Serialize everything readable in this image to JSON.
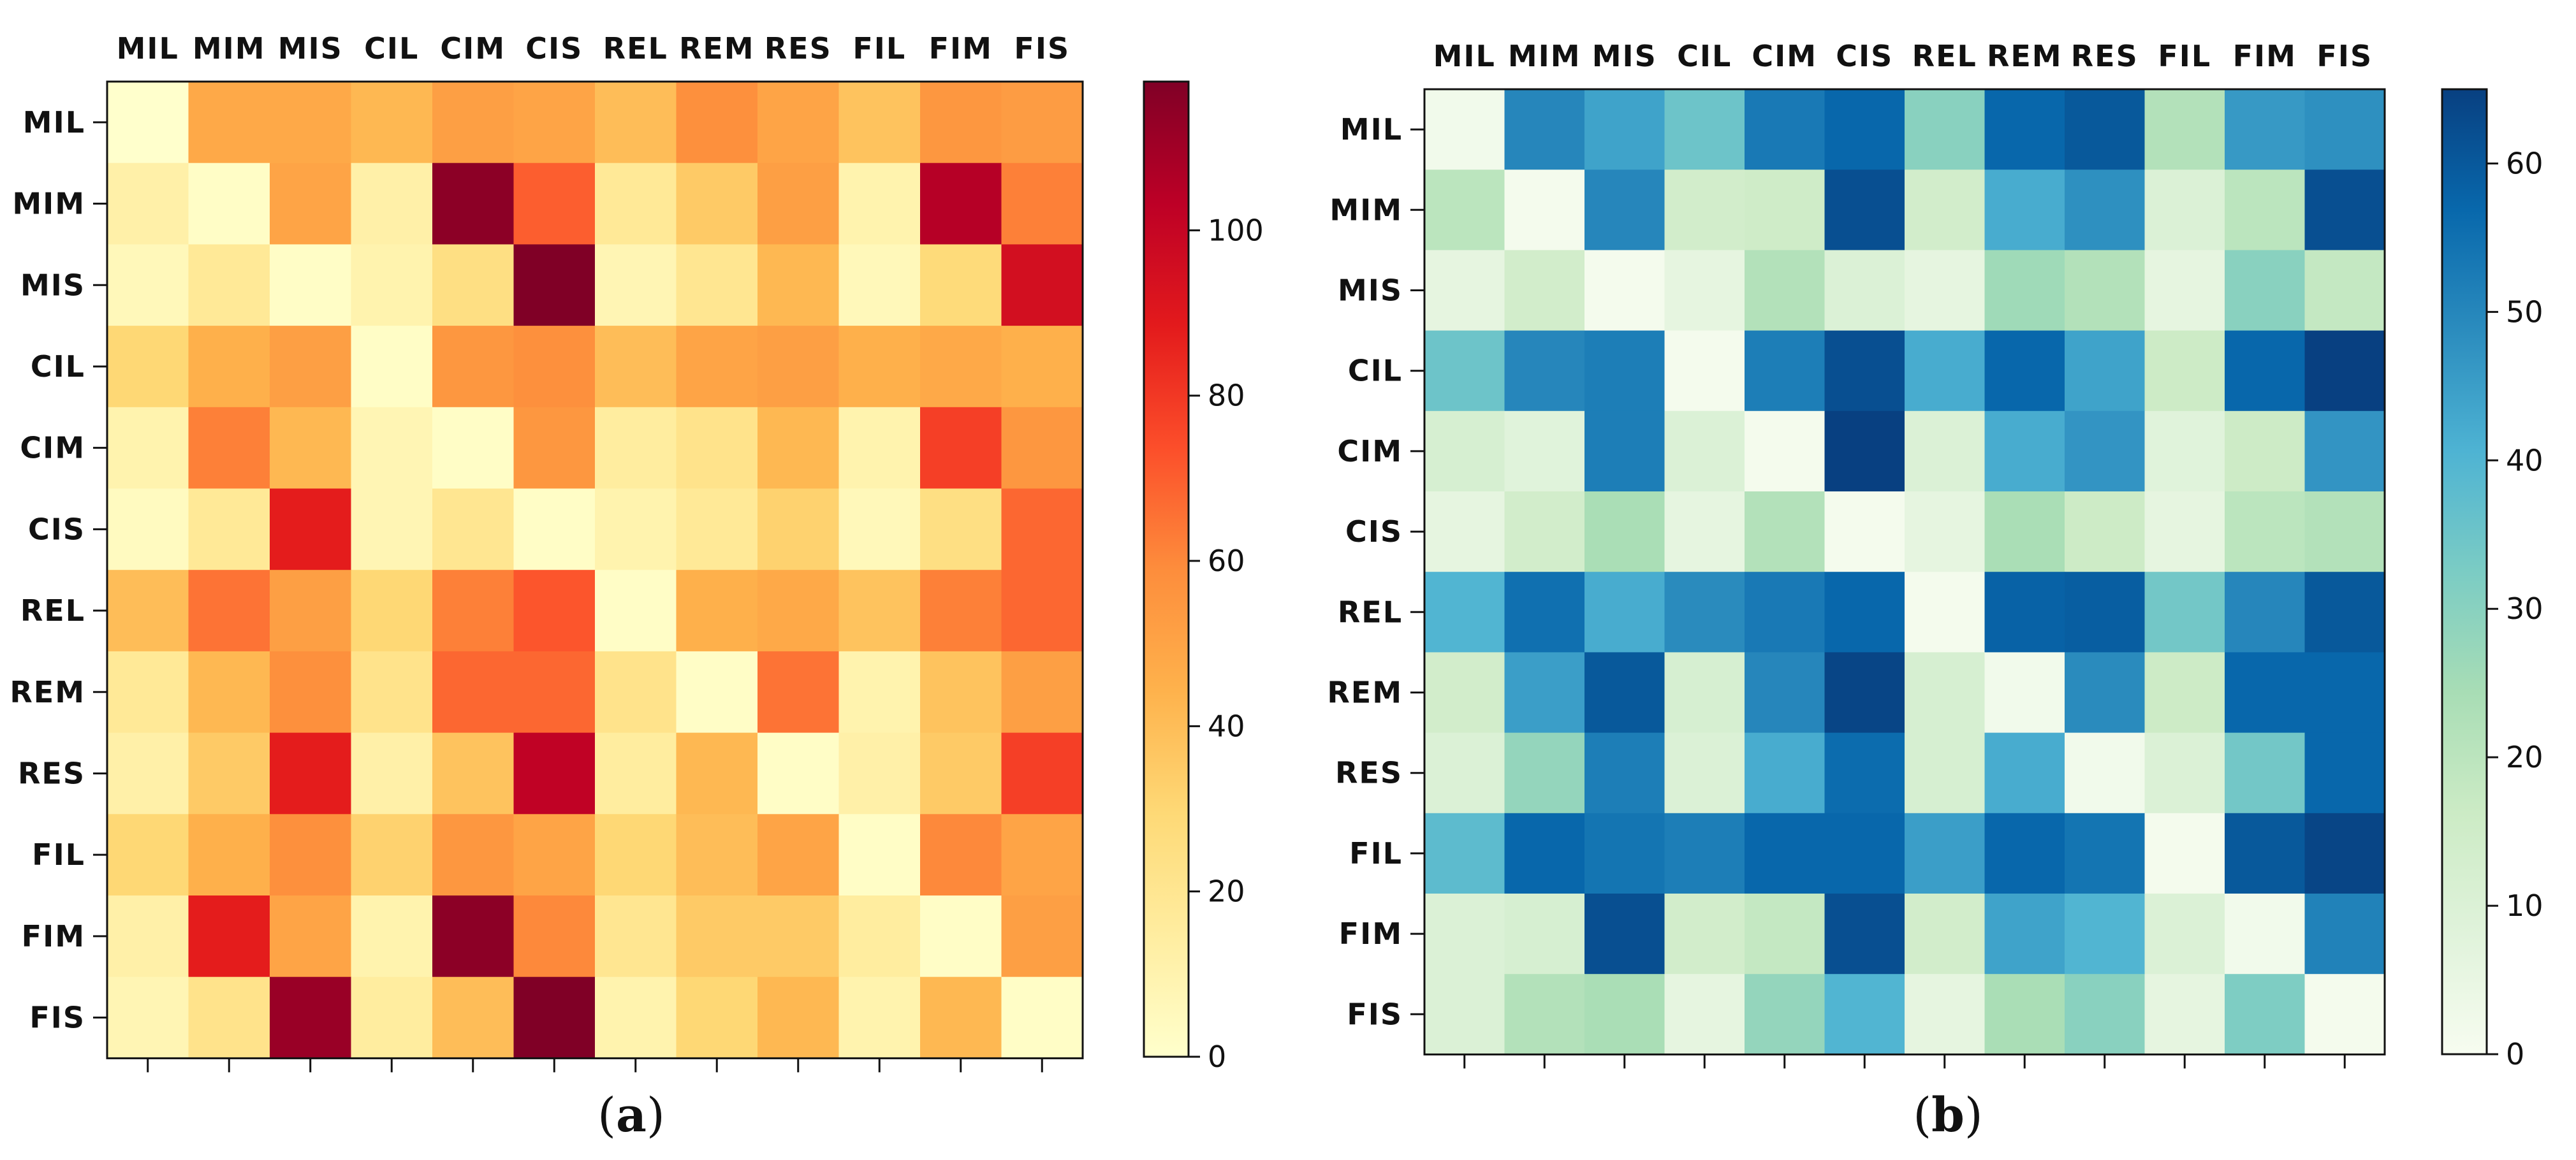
{
  "chart_data": [
    {
      "type": "heatmap",
      "panel_label": "(a)",
      "panel_letter": "a",
      "colormap": "YlOrRd",
      "vmin": 0,
      "vmax": 118,
      "colorbar_ticks": [
        0,
        20,
        40,
        60,
        80,
        100
      ],
      "x_labels": [
        "MIL",
        "MIM",
        "MIS",
        "CIL",
        "CIM",
        "CIS",
        "REL",
        "REM",
        "RES",
        "FIL",
        "FIM",
        "FIS"
      ],
      "y_labels": [
        "MIL",
        "MIM",
        "MIS",
        "CIL",
        "CIM",
        "CIS",
        "REL",
        "REM",
        "RES",
        "FIL",
        "FIM",
        "FIS"
      ],
      "values": [
        [
          0,
          48,
          48,
          42,
          52,
          50,
          40,
          58,
          50,
          38,
          55,
          53
        ],
        [
          12,
          2,
          50,
          12,
          115,
          70,
          18,
          35,
          52,
          10,
          105,
          62
        ],
        [
          6,
          18,
          2,
          10,
          25,
          118,
          8,
          20,
          42,
          6,
          28,
          95
        ],
        [
          30,
          45,
          52,
          2,
          55,
          58,
          40,
          50,
          52,
          45,
          48,
          45
        ],
        [
          10,
          62,
          42,
          8,
          2,
          55,
          15,
          22,
          42,
          10,
          78,
          55
        ],
        [
          4,
          18,
          88,
          8,
          20,
          2,
          10,
          18,
          32,
          6,
          25,
          68
        ],
        [
          40,
          65,
          52,
          30,
          62,
          72,
          2,
          45,
          48,
          38,
          62,
          68
        ],
        [
          18,
          42,
          58,
          22,
          68,
          68,
          22,
          2,
          65,
          10,
          38,
          52
        ],
        [
          12,
          35,
          88,
          12,
          38,
          102,
          15,
          42,
          2,
          12,
          35,
          78
        ],
        [
          30,
          45,
          58,
          32,
          55,
          50,
          30,
          40,
          50,
          2,
          60,
          50
        ],
        [
          12,
          88,
          50,
          10,
          115,
          60,
          20,
          35,
          35,
          15,
          2,
          52
        ],
        [
          8,
          22,
          112,
          15,
          40,
          118,
          10,
          30,
          42,
          10,
          42,
          2
        ]
      ]
    },
    {
      "type": "heatmap",
      "panel_label": "(b)",
      "panel_letter": "b",
      "colormap": "GnBu",
      "vmin": 0,
      "vmax": 65,
      "colorbar_ticks": [
        0,
        10,
        20,
        30,
        40,
        50,
        60
      ],
      "x_labels": [
        "MIL",
        "MIM",
        "MIS",
        "CIL",
        "CIM",
        "CIS",
        "REL",
        "REM",
        "RES",
        "FIL",
        "FIM",
        "FIS"
      ],
      "y_labels": [
        "MIL",
        "MIM",
        "MIS",
        "CIL",
        "CIM",
        "CIS",
        "REL",
        "REM",
        "RES",
        "FIL",
        "FIM",
        "FIS"
      ],
      "values": [
        [
          2,
          50,
          44,
          35,
          53,
          57,
          30,
          57,
          60,
          22,
          46,
          48
        ],
        [
          20,
          1,
          50,
          14,
          15,
          62,
          14,
          42,
          48,
          10,
          20,
          62
        ],
        [
          6,
          14,
          1,
          6,
          22,
          10,
          6,
          26,
          22,
          6,
          30,
          18
        ],
        [
          35,
          50,
          52,
          1,
          52,
          62,
          42,
          57,
          44,
          16,
          57,
          65
        ],
        [
          12,
          8,
          52,
          10,
          1,
          65,
          10,
          42,
          47,
          8,
          16,
          47
        ],
        [
          6,
          14,
          24,
          6,
          22,
          1,
          6,
          24,
          16,
          6,
          20,
          22
        ],
        [
          40,
          55,
          42,
          49,
          53,
          57,
          1,
          58,
          59,
          34,
          50,
          60
        ],
        [
          14,
          45,
          60,
          12,
          50,
          64,
          12,
          2,
          49,
          16,
          57,
          57
        ],
        [
          10,
          28,
          52,
          10,
          42,
          56,
          12,
          42,
          2,
          10,
          34,
          57
        ],
        [
          38,
          57,
          54,
          52,
          57,
          57,
          45,
          57,
          54,
          1,
          60,
          64
        ],
        [
          10,
          12,
          62,
          14,
          18,
          62,
          14,
          44,
          40,
          10,
          2,
          51
        ],
        [
          10,
          22,
          24,
          6,
          28,
          40,
          6,
          24,
          30,
          6,
          32,
          1
        ]
      ]
    }
  ]
}
